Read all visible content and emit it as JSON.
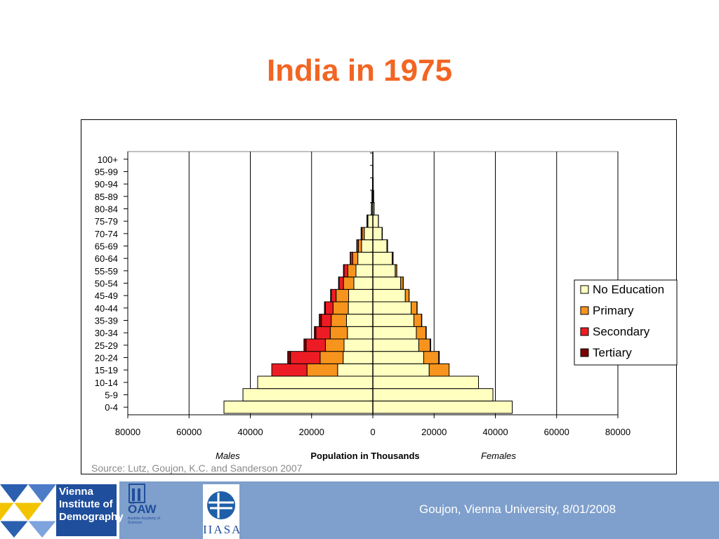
{
  "slide": {
    "title": "India in 1975",
    "source": "Source: Lutz, Goujon, K.C. and Sanderson 2007",
    "footer": "Goujon,  Vienna University, 8/01/2008"
  },
  "logos": {
    "vid": "Vienna Institute of Demography",
    "oaw": "ÖAW",
    "oaw_sub": "Austrian Academy of Sciences",
    "iiasa": "IIASA"
  },
  "colors": {
    "title": "#f26522",
    "no_education": "#ffffc0",
    "primary": "#f7941d",
    "secondary": "#ed1c24",
    "tertiary": "#7b0000",
    "footer": "#7f9fcc"
  },
  "chart_data": {
    "type": "bar",
    "orientation": "horizontal",
    "stacked": true,
    "xlabel": "Population in Thousands",
    "left_label": "Males",
    "right_label": "Females",
    "xlim": [
      -80000,
      80000
    ],
    "xticks": [
      -80000,
      -60000,
      -40000,
      -20000,
      0,
      20000,
      40000,
      60000,
      80000
    ],
    "xtick_labels": [
      "80000",
      "60000",
      "40000",
      "20000",
      "0",
      "20000",
      "40000",
      "60000",
      "80000"
    ],
    "legend_position": "right",
    "categories": [
      "0-4",
      "5-9",
      "10-14",
      "15-19",
      "20-24",
      "25-29",
      "30-34",
      "35-39",
      "40-44",
      "45-49",
      "50-54",
      "55-59",
      "60-64",
      "65-69",
      "70-74",
      "75-79",
      "80-84",
      "85-89",
      "90-94",
      "95-99",
      "100+"
    ],
    "series": [
      {
        "name": "No Education",
        "males": [
          48600,
          42400,
          37600,
          11500,
          9700,
          9400,
          8300,
          8600,
          8000,
          7900,
          6200,
          5500,
          4900,
          3700,
          2800,
          1600,
          400,
          250,
          120,
          50,
          20
        ],
        "females": [
          45500,
          39200,
          34500,
          18400,
          16600,
          15000,
          14200,
          13400,
          12500,
          10600,
          9100,
          7300,
          6300,
          4600,
          3000,
          1800,
          450,
          260,
          130,
          50,
          20
        ]
      },
      {
        "name": "Primary",
        "males": [
          0,
          0,
          0,
          10000,
          7500,
          6100,
          5600,
          5000,
          5000,
          4100,
          3400,
          2700,
          1700,
          1000,
          700,
          200,
          50,
          20,
          5,
          0,
          0
        ],
        "females": [
          0,
          0,
          0,
          6500,
          4900,
          3700,
          3100,
          2500,
          1900,
          1200,
          800,
          500,
          300,
          200,
          100,
          30,
          10,
          5,
          0,
          0,
          0
        ]
      },
      {
        "name": "Secondary",
        "males": [
          0,
          0,
          0,
          11500,
          9700,
          6300,
          4700,
          3200,
          2500,
          1600,
          1400,
          1200,
          700,
          500,
          300,
          100,
          20,
          5,
          0,
          0,
          0
        ]
      },
      {
        "name": "Tertiary",
        "males": [
          0,
          0,
          0,
          0,
          900,
          700,
          500,
          700,
          300,
          200,
          200,
          200,
          100,
          50,
          30,
          10,
          5,
          0,
          0,
          0,
          0
        ],
        "females": [
          0,
          0,
          0,
          0,
          200,
          200,
          150,
          100,
          80,
          50,
          40,
          30,
          20,
          10,
          5,
          0,
          0,
          0,
          0,
          0,
          0
        ]
      }
    ]
  }
}
